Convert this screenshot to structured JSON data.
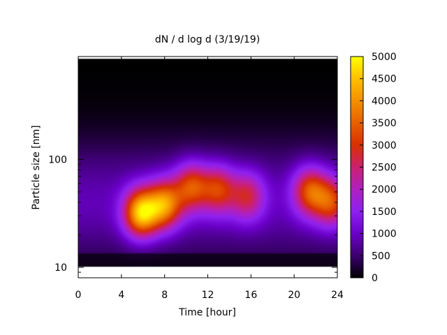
{
  "chart_data": {
    "type": "heatmap",
    "title": "dN / d log d (3/19/19)",
    "xlabel": "Time [hour]",
    "ylabel": "Particle size [nm]",
    "xlim": [
      0,
      24
    ],
    "ylim": [
      8,
      900
    ],
    "y_scale": "log",
    "x_ticks": [
      0,
      4,
      8,
      12,
      16,
      20,
      24
    ],
    "x_tick_labels": [
      "0",
      "4",
      "8",
      "12",
      "16",
      "20",
      "24"
    ],
    "y_ticks": [
      10,
      100
    ],
    "y_tick_labels": [
      "10",
      "100"
    ],
    "colorbar": {
      "range": [
        0,
        5000
      ],
      "ticks": [
        0,
        500,
        1000,
        1500,
        2000,
        2500,
        3000,
        3500,
        4000,
        4500,
        5000
      ],
      "tick_labels": [
        "0",
        "500",
        "1000",
        "1500",
        "2000",
        "2500",
        "3000",
        "3500",
        "4000",
        "4500",
        "5000"
      ],
      "colormap": [
        "#000000",
        "#3c0070",
        "#6a00c8",
        "#8e20f0",
        "#b020c0",
        "#cc2070",
        "#d83000",
        "#e86000",
        "#f49000",
        "#ffc000",
        "#ffff00"
      ]
    },
    "size_range_nm": [
      10,
      870
    ],
    "peaks": [
      {
        "time_hr": 5.8,
        "size_nm": 32,
        "value": 4600
      },
      {
        "time_hr": 8.0,
        "size_nm": 38,
        "value": 3900
      },
      {
        "time_hr": 10.5,
        "size_nm": 55,
        "value": 3200
      },
      {
        "time_hr": 13.0,
        "size_nm": 52,
        "value": 3000
      },
      {
        "time_hr": 15.7,
        "size_nm": 45,
        "value": 2700
      },
      {
        "time_hr": 21.5,
        "size_nm": 50,
        "value": 3300
      },
      {
        "time_hr": 23.5,
        "size_nm": 40,
        "value": 3100
      }
    ]
  }
}
